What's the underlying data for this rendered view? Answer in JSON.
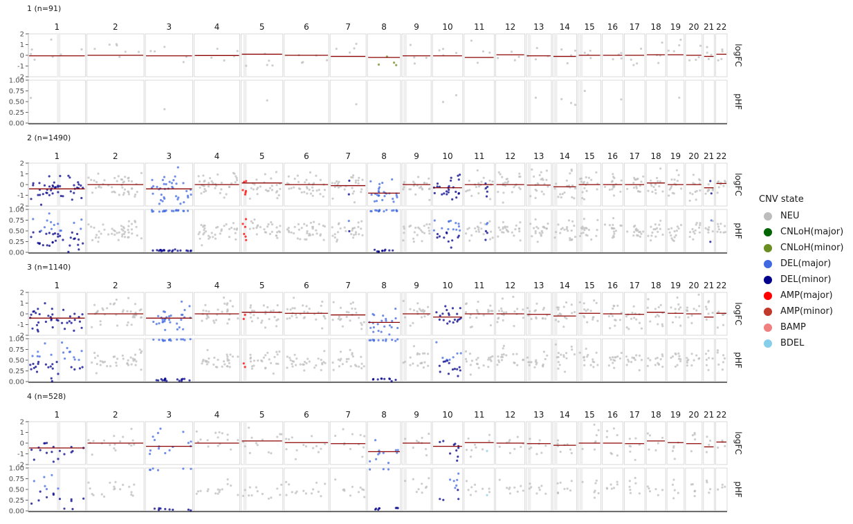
{
  "chart_data": {
    "type": "scatter",
    "chromosomes": [
      "1",
      "2",
      "3",
      "4",
      "5",
      "6",
      "7",
      "8",
      "9",
      "10",
      "11",
      "12",
      "13",
      "14",
      "15",
      "16",
      "17",
      "18",
      "19",
      "20",
      "21",
      "22"
    ],
    "chromosome_relative_widths": [
      1.0,
      1.0,
      0.83,
      0.8,
      0.73,
      0.78,
      0.63,
      0.58,
      0.51,
      0.53,
      0.53,
      0.51,
      0.44,
      0.42,
      0.4,
      0.36,
      0.36,
      0.34,
      0.3,
      0.29,
      0.19,
      0.2
    ],
    "rows": [
      "logFC",
      "pHF"
    ],
    "axes": {
      "logFC": {
        "ylabel": "logFC",
        "ylim": [
          -2,
          2
        ],
        "ticks": [
          "-2",
          "-1",
          "0",
          "1",
          "2"
        ]
      },
      "pHF": {
        "ylabel": "pHF",
        "ylim": [
          0,
          1
        ],
        "ticks": [
          "0.00",
          "0.25",
          "0.50",
          "0.75",
          "1.00"
        ]
      }
    },
    "legend": {
      "title": "CNV state",
      "position": "right",
      "entries": [
        {
          "label": "NEU",
          "color": "#bdbdbd"
        },
        {
          "label": "CNLoH(major)",
          "color": "#006400"
        },
        {
          "label": "CNLoH(minor)",
          "color": "#6b8e23"
        },
        {
          "label": "DEL(major)",
          "color": "#4169e1"
        },
        {
          "label": "DEL(minor)",
          "color": "#00008b"
        },
        {
          "label": "AMP(major)",
          "color": "#ff0000"
        },
        {
          "label": "AMP(minor)",
          "color": "#c0392b"
        },
        {
          "label": "BAMP",
          "color": "#f08080"
        },
        {
          "label": "BDEL",
          "color": "#87ceeb"
        }
      ]
    },
    "panels": [
      {
        "title": "1 (n=91)",
        "segment_means": [
          -0.05,
          0.0,
          -0.05,
          -0.02,
          0.1,
          0.0,
          -0.1,
          -0.2,
          -0.05,
          -0.05,
          -0.2,
          0.05,
          -0.05,
          -0.1,
          0.0,
          0.0,
          0.0,
          0.05,
          0.05,
          0.0,
          -0.1,
          0.1
        ],
        "segments": [
          {
            "chr": "8",
            "start": 0.0,
            "end": 1.0,
            "state": "CNLoH(minor)"
          }
        ]
      },
      {
        "title": "2 (n=1490)",
        "segment_means": [
          -0.4,
          0.0,
          -0.4,
          0.0,
          0.15,
          0.0,
          -0.1,
          -0.8,
          0.0,
          -0.3,
          0.0,
          0.0,
          -0.05,
          -0.2,
          0.0,
          0.0,
          0.0,
          0.15,
          0.0,
          0.0,
          -0.3,
          0.1
        ],
        "segments": [
          {
            "chr": "1",
            "start": 0.0,
            "end": 1.0,
            "state": "DEL(minor)"
          },
          {
            "chr": "3",
            "start": 0.0,
            "end": 1.0,
            "state": "DEL(major)"
          },
          {
            "chr": "5",
            "start": 0.0,
            "end": 0.15,
            "state": "AMP(major)"
          },
          {
            "chr": "7",
            "start": 0.5,
            "end": 0.58,
            "state": "DEL(minor)"
          },
          {
            "chr": "8",
            "start": 0.0,
            "end": 1.0,
            "state": "DEL(major)"
          },
          {
            "chr": "10",
            "start": 0.0,
            "end": 1.0,
            "state": "DEL(minor)"
          },
          {
            "chr": "11",
            "start": 0.72,
            "end": 0.82,
            "state": "DEL(minor)"
          },
          {
            "chr": "21",
            "start": 0.55,
            "end": 0.9,
            "state": "DEL(minor)"
          }
        ]
      },
      {
        "title": "3 (n=1140)",
        "segment_means": [
          -0.4,
          0.0,
          -0.4,
          0.0,
          0.15,
          0.05,
          -0.1,
          -0.8,
          0.0,
          -0.3,
          0.0,
          0.0,
          -0.05,
          -0.2,
          0.05,
          0.0,
          -0.05,
          0.15,
          0.05,
          0.0,
          -0.3,
          0.05
        ],
        "segments": [
          {
            "chr": "1",
            "start": 0.0,
            "end": 1.0,
            "state": "DEL(minor)"
          },
          {
            "chr": "3",
            "start": 0.0,
            "end": 1.0,
            "state": "DEL(major)"
          },
          {
            "chr": "5",
            "start": 0.0,
            "end": 0.15,
            "state": "AMP(major)"
          },
          {
            "chr": "8",
            "start": 0.0,
            "end": 1.0,
            "state": "DEL(major)"
          },
          {
            "chr": "10",
            "start": 0.0,
            "end": 1.0,
            "state": "DEL(minor)"
          },
          {
            "chr": "11",
            "start": 0.72,
            "end": 0.82,
            "state": "DEL(minor)"
          },
          {
            "chr": "21",
            "start": 0.55,
            "end": 0.9,
            "state": "DEL(minor)"
          }
        ]
      },
      {
        "title": "4 (n=528)",
        "segment_means": [
          -0.45,
          0.0,
          -0.3,
          0.0,
          0.2,
          0.05,
          -0.05,
          -0.8,
          0.0,
          -0.3,
          0.05,
          0.0,
          -0.05,
          -0.2,
          0.0,
          0.0,
          -0.05,
          0.2,
          0.05,
          -0.05,
          -0.35,
          0.1
        ],
        "segments": [
          {
            "chr": "1",
            "start": 0.0,
            "end": 1.0,
            "state": "DEL(minor)"
          },
          {
            "chr": "3",
            "start": 0.0,
            "end": 1.0,
            "state": "DEL(major)"
          },
          {
            "chr": "8",
            "start": 0.0,
            "end": 1.0,
            "state": "DEL(major)"
          },
          {
            "chr": "10",
            "start": 0.0,
            "end": 1.0,
            "state": "DEL(minor)"
          },
          {
            "chr": "11",
            "start": 0.65,
            "end": 0.85,
            "state": "BDEL"
          }
        ]
      }
    ]
  }
}
